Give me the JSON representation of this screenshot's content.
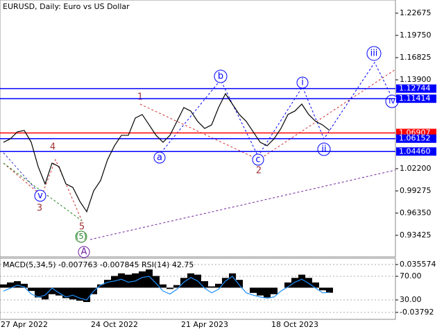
{
  "chart_data": [
    {
      "type": "line",
      "title": "EURUSD, Daily:  Euro vs US Dollar",
      "categories": [
        null,
        null,
        null,
        "27 Apr 2022",
        null,
        null,
        null,
        null,
        null,
        null,
        null,
        null,
        null,
        null,
        null,
        null,
        "24 Oct 2022",
        null,
        null,
        null,
        null,
        null,
        null,
        null,
        null,
        null,
        null,
        null,
        null,
        "21 Apr 2023",
        null,
        null,
        null,
        null,
        null,
        null,
        null,
        null,
        null,
        null,
        null,
        null,
        "18 Oct 2023",
        null,
        null,
        null,
        null,
        null
      ],
      "series": [
        {
          "color": "#000000",
          "values": [
            1.0568,
            1.0613,
            1.0705,
            1.0723,
            1.0568,
            1.0248,
            1.0019,
            1.0293,
            1.0248,
            1.0019,
            0.9973,
            0.9791,
            0.9654,
            0.9928,
            1.0065,
            1.0339,
            1.0522,
            1.0659,
            1.0659,
            1.0887,
            1.0933,
            1.0796,
            1.0659,
            1.0568,
            1.0659,
            1.0842,
            1.1025,
            1.0979,
            1.0842,
            1.075,
            1.0796,
            1.1025,
            1.1207,
            1.107,
            1.0933,
            1.0842,
            1.0705,
            1.0568,
            1.0522,
            1.0613,
            1.075,
            1.0933,
            1.0979,
            1.107,
            1.0933,
            1.0842,
            1.0796,
            1.0723
          ]
        }
      ],
      "ylim": [
        0.9059,
        1.2441
      ],
      "yticks": [
        1.22675,
        {
          "value": 1.1975,
          "label": "1.19750"
        },
        1.16825,
        {
          "value": 1.139,
          "label": "1.13900"
        },
        {
          "value": 1.022,
          "label": "1.02200"
        },
        0.99275,
        {
          "value": 0.9635,
          "label": "0.96350"
        },
        0.93425
      ],
      "levels": [
        {
          "value": 1.12744,
          "color": "#0000ff"
        },
        {
          "value": 1.11414,
          "color": "#0000ff"
        },
        {
          "value": 1.06907,
          "color": "#ff0000"
        },
        {
          "value": 1.06152,
          "color": "#0000ff"
        },
        {
          "value": 1.0446,
          "label": "1.04460",
          "color": "#0000ff"
        }
      ],
      "annotations": [
        "1",
        "2",
        "3",
        "4",
        "5",
        "(5)",
        "A",
        "a",
        "b",
        "c",
        "i",
        "ii",
        "iii",
        "iv",
        "v"
      ]
    },
    {
      "type": "bar",
      "title": "MACD(5,34,5) -0.007763 -0.007845 RSI(14) 42.75",
      "series": [
        {
          "color": "#000000",
          "values": [
            0.005,
            0.008,
            0.01,
            0.006,
            -0.005,
            -0.015,
            -0.018,
            -0.01,
            -0.012,
            -0.016,
            -0.018,
            -0.02,
            -0.022,
            -0.01,
            0.005,
            0.012,
            0.018,
            0.022,
            0.02,
            0.022,
            0.025,
            0.028,
            0.018,
            0.005,
            -0.002,
            0.004,
            0.015,
            0.022,
            0.02,
            0.01,
            0.002,
            0.006,
            0.015,
            0.022,
            0.012,
            0.0,
            -0.008,
            -0.012,
            -0.015,
            -0.01,
            0.0,
            0.008,
            0.015,
            0.02,
            0.015,
            0.008,
            -0.004,
            -0.007763
          ]
        },
        {
          "color": "#1e90ff",
          "axis": "y2",
          "values": [
            45,
            50,
            55,
            52,
            40,
            35,
            38,
            50,
            42,
            35,
            38,
            33,
            30,
            45,
            55,
            60,
            62,
            65,
            60,
            62,
            68,
            70,
            58,
            45,
            40,
            48,
            60,
            68,
            62,
            50,
            42,
            48,
            62,
            70,
            55,
            42,
            38,
            35,
            33,
            35,
            45,
            52,
            60,
            65,
            58,
            50,
            42,
            42.75
          ]
        }
      ],
      "ylim": [
        -0.0486,
        0.0452
      ],
      "yticks": [
        0.035574,
        -0.03792
      ],
      "y2lim": [
        -2.9,
        100.6
      ],
      "y2ticks": [
        {
          "value": 70,
          "label": "70.00"
        },
        {
          "value": 30,
          "label": "30.00"
        }
      ]
    }
  ]
}
